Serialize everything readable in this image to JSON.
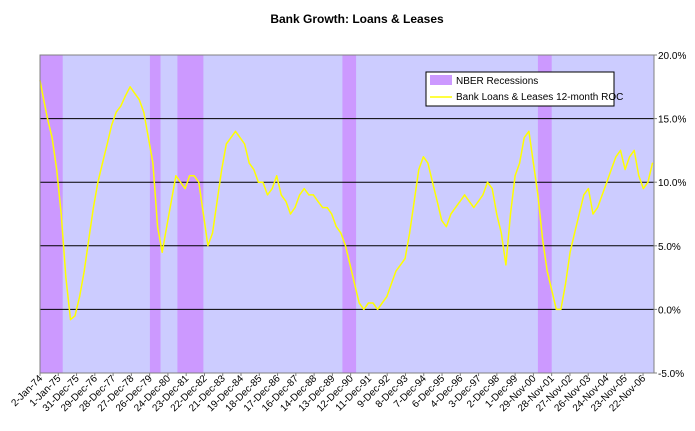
{
  "chart_data": {
    "type": "line",
    "title": "Bank Growth: Loans & Leases",
    "xlabel": "",
    "ylabel": "",
    "x_range": [
      "1974-01-02",
      "2007-06-30"
    ],
    "ylim": [
      -5.0,
      20.0
    ],
    "y_ticks": [
      "20.0%",
      "15.0%",
      "10.0%",
      "5.0%",
      "0.0%",
      "-5.0%"
    ],
    "y_tick_values": [
      20,
      15,
      10,
      5,
      0,
      -5
    ],
    "x_tick_labels": [
      "2-Jan-74",
      "1-Jan-75",
      "31-Dec-75",
      "29-Dec-76",
      "28-Dec-77",
      "27-Dec-78",
      "26-Dec-79",
      "24-Dec-80",
      "23-Dec-81",
      "22-Dec-82",
      "21-Dec-83",
      "19-Dec-84",
      "18-Dec-85",
      "17-Dec-86",
      "16-Dec-87",
      "14-Dec-88",
      "13-Dec-89",
      "12-Dec-90",
      "11-Dec-91",
      "9-Dec-92",
      "8-Dec-93",
      "7-Dec-94",
      "6-Dec-95",
      "4-Dec-96",
      "3-Dec-97",
      "2-Dec-98",
      "1-Dec-99",
      "29-Nov-00",
      "28-Nov-01",
      "27-Nov-02",
      "26-Nov-03",
      "24-Nov-04",
      "23-Nov-05",
      "22-Nov-06"
    ],
    "grid": "horizontal",
    "legend_position": "top-right",
    "plot_background": "#ccccff",
    "recessions": {
      "name": "NBER Recessions",
      "color": "#cc99ff",
      "periods": [
        [
          "1974-01-02",
          "1975-03-31"
        ],
        [
          "1980-01-01",
          "1980-07-31"
        ],
        [
          "1981-07-01",
          "1982-11-30"
        ],
        [
          "1990-07-01",
          "1991-03-31"
        ],
        [
          "2001-03-01",
          "2001-11-30"
        ]
      ]
    },
    "series": [
      {
        "name": "Bank Loans & Leases 12-month ROC",
        "color": "#ffff00",
        "x": [
          "1974-01-02",
          "1974-03-01",
          "1974-06-01",
          "1974-09-01",
          "1974-12-01",
          "1975-03-01",
          "1975-06-01",
          "1975-09-01",
          "1975-12-01",
          "1976-03-01",
          "1976-06-01",
          "1976-09-01",
          "1976-12-01",
          "1977-03-01",
          "1977-06-01",
          "1977-09-01",
          "1977-12-01",
          "1978-03-01",
          "1978-06-01",
          "1978-09-01",
          "1978-12-01",
          "1979-03-01",
          "1979-06-01",
          "1979-09-01",
          "1979-12-01",
          "1980-03-01",
          "1980-06-01",
          "1980-09-01",
          "1980-12-01",
          "1981-03-01",
          "1981-06-01",
          "1981-09-01",
          "1981-12-01",
          "1982-03-01",
          "1982-06-01",
          "1982-09-01",
          "1982-12-01",
          "1983-03-01",
          "1983-06-01",
          "1983-09-01",
          "1983-12-01",
          "1984-03-01",
          "1984-06-01",
          "1984-09-01",
          "1984-12-01",
          "1985-03-01",
          "1985-06-01",
          "1985-09-01",
          "1985-12-01",
          "1986-03-01",
          "1986-06-01",
          "1986-09-01",
          "1986-12-01",
          "1987-03-01",
          "1987-06-01",
          "1987-09-01",
          "1987-12-01",
          "1988-03-01",
          "1988-06-01",
          "1988-09-01",
          "1988-12-01",
          "1989-03-01",
          "1989-06-01",
          "1989-09-01",
          "1989-12-01",
          "1990-03-01",
          "1990-06-01",
          "1990-09-01",
          "1990-12-01",
          "1991-03-01",
          "1991-06-01",
          "1991-09-01",
          "1991-12-01",
          "1992-03-01",
          "1992-06-01",
          "1992-09-01",
          "1992-12-01",
          "1993-03-01",
          "1993-06-01",
          "1993-09-01",
          "1993-12-01",
          "1994-03-01",
          "1994-06-01",
          "1994-09-01",
          "1994-12-01",
          "1995-03-01",
          "1995-06-01",
          "1995-09-01",
          "1995-12-01",
          "1996-03-01",
          "1996-06-01",
          "1996-09-01",
          "1996-12-01",
          "1997-03-01",
          "1997-06-01",
          "1997-09-01",
          "1997-12-01",
          "1998-03-01",
          "1998-06-01",
          "1998-09-01",
          "1998-12-01",
          "1999-03-01",
          "1999-06-01",
          "1999-09-01",
          "1999-12-01",
          "2000-03-01",
          "2000-06-01",
          "2000-09-01",
          "2000-12-01",
          "2001-03-01",
          "2001-06-01",
          "2001-09-01",
          "2001-12-01",
          "2002-03-01",
          "2002-06-01",
          "2002-09-01",
          "2002-12-01",
          "2003-03-01",
          "2003-06-01",
          "2003-09-01",
          "2003-12-01",
          "2004-03-01",
          "2004-06-01",
          "2004-09-01",
          "2004-12-01",
          "2005-03-01",
          "2005-06-01",
          "2005-09-01",
          "2005-12-01",
          "2006-03-01",
          "2006-06-01",
          "2006-09-01",
          "2006-12-01",
          "2007-03-01",
          "2007-06-01"
        ],
        "values": [
          18.0,
          16.8,
          15.0,
          13.5,
          11.0,
          7.5,
          2.5,
          -0.8,
          -0.5,
          1.0,
          3.0,
          5.5,
          8.0,
          10.0,
          11.5,
          13.0,
          14.5,
          15.5,
          16.0,
          16.8,
          17.5,
          17.0,
          16.5,
          15.5,
          13.5,
          11.5,
          6.5,
          4.5,
          6.5,
          8.5,
          10.5,
          10.0,
          9.5,
          10.5,
          10.5,
          10.0,
          7.5,
          5.0,
          6.0,
          8.5,
          11.0,
          13.0,
          13.5,
          14.0,
          13.5,
          13.0,
          11.5,
          11.0,
          10.0,
          10.0,
          9.0,
          9.5,
          10.5,
          9.0,
          8.5,
          7.5,
          8.0,
          9.0,
          9.5,
          9.0,
          9.0,
          8.5,
          8.0,
          8.0,
          7.5,
          6.5,
          6.0,
          5.0,
          3.5,
          2.0,
          0.5,
          0.0,
          0.5,
          0.5,
          0.0,
          0.5,
          1.0,
          2.0,
          3.0,
          3.5,
          4.0,
          6.0,
          8.5,
          11.0,
          12.0,
          11.5,
          10.0,
          8.5,
          7.0,
          6.5,
          7.5,
          8.0,
          8.5,
          9.0,
          8.5,
          8.0,
          8.5,
          9.0,
          10.0,
          9.5,
          7.5,
          6.0,
          3.5,
          7.5,
          10.5,
          11.5,
          13.5,
          14.0,
          11.5,
          9.0,
          5.5,
          3.0,
          1.5,
          0.0,
          0.0,
          2.0,
          4.5,
          6.0,
          7.5,
          9.0,
          9.5,
          7.5,
          8.0,
          9.0,
          10.0,
          11.0,
          12.0,
          12.5,
          11.0,
          12.0,
          12.5,
          10.5,
          9.5,
          10.0,
          11.5
        ]
      }
    ]
  }
}
